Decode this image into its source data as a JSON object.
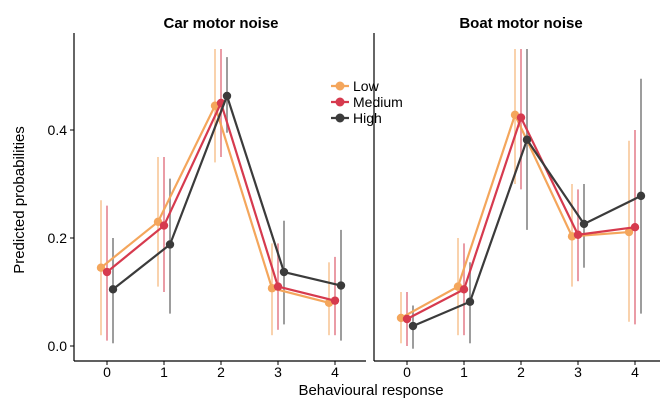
{
  "chart_data": {
    "type": "line",
    "xlabel": "Behavioural response",
    "ylabel": "Predicted probabilities",
    "x_ticks": [
      "0",
      "1",
      "2",
      "3",
      "4"
    ],
    "y_ticks": [
      "0.0",
      "0.2",
      "0.4"
    ],
    "ylim": [
      -0.02,
      0.55
    ],
    "grid": false,
    "legend": {
      "placement": "top-right of left panel",
      "entries": [
        {
          "name": "Low",
          "color": "#F4A65C"
        },
        {
          "name": "Medium",
          "color": "#D63A4E"
        },
        {
          "name": "High",
          "color": "#3B3B3B"
        }
      ]
    },
    "panels": [
      {
        "title": "Car motor noise",
        "series": [
          {
            "name": "Low",
            "color": "#F4A65C",
            "values": [
              0.145,
              0.23,
              0.445,
              0.107,
              0.08
            ],
            "lower": [
              0.02,
              0.11,
              0.34,
              0.02,
              0.02
            ],
            "upper": [
              0.27,
              0.35,
              0.55,
              0.19,
              0.155
            ]
          },
          {
            "name": "Medium",
            "color": "#D63A4E",
            "values": [
              0.137,
              0.223,
              0.45,
              0.11,
              0.084
            ],
            "lower": [
              0.01,
              0.1,
              0.35,
              0.03,
              0.02
            ],
            "upper": [
              0.26,
              0.35,
              0.55,
              0.19,
              0.165
            ]
          },
          {
            "name": "High",
            "color": "#3B3B3B",
            "values": [
              0.105,
              0.188,
              0.463,
              0.137,
              0.112
            ],
            "lower": [
              0.005,
              0.06,
              0.395,
              0.04,
              0.01
            ],
            "upper": [
              0.2,
              0.31,
              0.535,
              0.232,
              0.215
            ]
          }
        ]
      },
      {
        "title": "Boat motor noise",
        "series": [
          {
            "name": "Low",
            "color": "#F4A65C",
            "values": [
              0.052,
              0.11,
              0.428,
              0.203,
              0.211
            ],
            "lower": [
              0.005,
              0.02,
              0.3,
              0.11,
              0.045
            ],
            "upper": [
              0.1,
              0.2,
              0.55,
              0.3,
              0.38
            ]
          },
          {
            "name": "Medium",
            "color": "#D63A4E",
            "values": [
              0.05,
              0.105,
              0.423,
              0.206,
              0.22
            ],
            "lower": [
              0.0,
              0.02,
              0.29,
              0.12,
              0.04
            ],
            "upper": [
              0.1,
              0.19,
              0.55,
              0.29,
              0.4
            ]
          },
          {
            "name": "High",
            "color": "#3B3B3B",
            "values": [
              0.037,
              0.082,
              0.382,
              0.226,
              0.278
            ],
            "lower": [
              -0.005,
              0.005,
              0.215,
              0.145,
              0.06
            ],
            "upper": [
              0.075,
              0.155,
              0.55,
              0.3,
              0.495
            ]
          }
        ]
      }
    ]
  }
}
